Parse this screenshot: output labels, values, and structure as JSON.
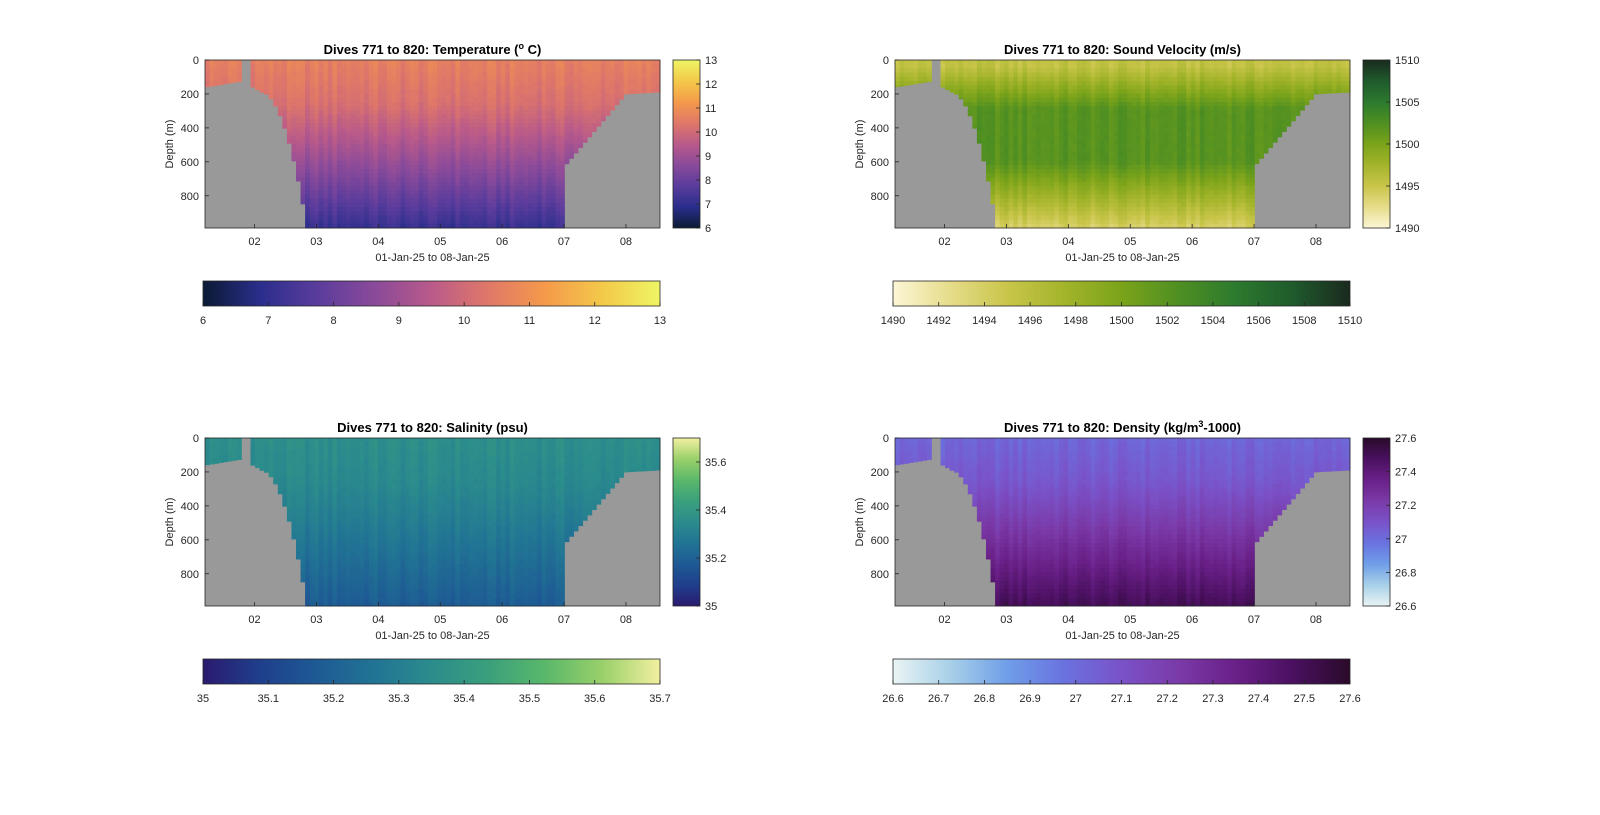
{
  "figure": {
    "window_title": ""
  },
  "chart_data": [
    {
      "type": "heatmap",
      "id": "temperature",
      "title_prefix": "Dives 771 to 820: Temperature (",
      "title_sup": "o",
      "title_suffix": " C)",
      "xlabel": "01-Jan-25 to 08-Jan-25",
      "ylabel": "Depth (m)",
      "x_range_days": [
        1.2,
        8.55
      ],
      "x_ticks": [
        "02",
        "03",
        "04",
        "05",
        "06",
        "07",
        "08"
      ],
      "x_tick_values": [
        2,
        3,
        4,
        5,
        6,
        7,
        8
      ],
      "y_range": [
        0,
        990
      ],
      "y_ticks": [
        "0",
        "200",
        "400",
        "600",
        "800"
      ],
      "y_tick_values": [
        0,
        200,
        400,
        600,
        800
      ],
      "y_reversed": true,
      "clim": [
        6,
        13
      ],
      "cbar_right_ticks": [
        "6",
        "7",
        "8",
        "9",
        "10",
        "11",
        "12",
        "13"
      ],
      "cbar_right_values": [
        6,
        7,
        8,
        9,
        10,
        11,
        12,
        13
      ],
      "cbar_bottom_ticks": [
        "6",
        "7",
        "8",
        "9",
        "10",
        "11",
        "12",
        "13"
      ],
      "cbar_bottom_values": [
        6,
        7,
        8,
        9,
        10,
        11,
        12,
        13
      ],
      "colormap": [
        "#0b1a33",
        "#2a2e8c",
        "#5a3c9c",
        "#8a4a9a",
        "#b95a8a",
        "#e07868",
        "#f59a4a",
        "#f3c94a",
        "#eef565"
      ],
      "surface_value": 10.6,
      "deep_value": 7.1,
      "mask_color": "#999999"
    },
    {
      "type": "heatmap",
      "id": "sound_velocity",
      "title_prefix": "Dives 771 to 820: Sound Velocity (m/s)",
      "title_sup": "",
      "title_suffix": "",
      "xlabel": "01-Jan-25 to 08-Jan-25",
      "ylabel": "Depth (m)",
      "x_range_days": [
        1.2,
        8.55
      ],
      "x_ticks": [
        "02",
        "03",
        "04",
        "05",
        "06",
        "07",
        "08"
      ],
      "x_tick_values": [
        2,
        3,
        4,
        5,
        6,
        7,
        8
      ],
      "y_range": [
        0,
        990
      ],
      "y_ticks": [
        "0",
        "200",
        "400",
        "600",
        "800"
      ],
      "y_tick_values": [
        0,
        200,
        400,
        600,
        800
      ],
      "y_reversed": true,
      "clim": [
        1490,
        1510
      ],
      "cbar_right_ticks": [
        "1490",
        "1495",
        "1500",
        "1505",
        "1510"
      ],
      "cbar_right_values": [
        1490,
        1495,
        1500,
        1505,
        1510
      ],
      "cbar_bottom_ticks": [
        "1490",
        "1492",
        "1494",
        "1496",
        "1498",
        "1500",
        "1502",
        "1504",
        "1506",
        "1508",
        "1510"
      ],
      "cbar_bottom_values": [
        1490,
        1492,
        1494,
        1496,
        1498,
        1500,
        1502,
        1504,
        1506,
        1508,
        1510
      ],
      "colormap": [
        "#fcf6d6",
        "#e6dc8a",
        "#c9c54a",
        "#a3b42a",
        "#7aa31a",
        "#4f8f22",
        "#2c7a2e",
        "#1f5a2c",
        "#1a2a1e"
      ],
      "surface_value": 1495.5,
      "mid_value": 1502,
      "deep_value": 1494,
      "mask_color": "#999999"
    },
    {
      "type": "heatmap",
      "id": "salinity",
      "title_prefix": "Dives 771 to 820: Salinity (psu)",
      "title_sup": "",
      "title_suffix": "",
      "xlabel": "01-Jan-25 to 08-Jan-25",
      "ylabel": "Depth (m)",
      "x_range_days": [
        1.2,
        8.55
      ],
      "x_ticks": [
        "02",
        "03",
        "04",
        "05",
        "06",
        "07",
        "08"
      ],
      "x_tick_values": [
        2,
        3,
        4,
        5,
        6,
        7,
        8
      ],
      "y_range": [
        0,
        990
      ],
      "y_ticks": [
        "0",
        "200",
        "400",
        "600",
        "800"
      ],
      "y_tick_values": [
        0,
        200,
        400,
        600,
        800
      ],
      "y_reversed": true,
      "clim": [
        35,
        35.7
      ],
      "cbar_right_ticks": [
        "35",
        "35.2",
        "35.4",
        "35.6"
      ],
      "cbar_right_values": [
        35,
        35.2,
        35.4,
        35.6
      ],
      "cbar_bottom_ticks": [
        "35",
        "35.1",
        "35.2",
        "35.3",
        "35.4",
        "35.5",
        "35.6",
        "35.7"
      ],
      "cbar_bottom_values": [
        35,
        35.1,
        35.2,
        35.3,
        35.4,
        35.5,
        35.6,
        35.7
      ],
      "colormap": [
        "#2a1a6e",
        "#1f3f8c",
        "#1e5a94",
        "#217494",
        "#2b8c8c",
        "#3aa07c",
        "#5ab86a",
        "#9ad06a",
        "#f2f0a0"
      ],
      "surface_value": 35.36,
      "deep_value": 35.18,
      "mask_color": "#999999"
    },
    {
      "type": "heatmap",
      "id": "density",
      "title_prefix": "Dives 771 to 820: Density (kg/m",
      "title_sup": "3",
      "title_suffix": "-1000)",
      "xlabel": "01-Jan-25 to 08-Jan-25",
      "ylabel": "Depth (m)",
      "x_range_days": [
        1.2,
        8.55
      ],
      "x_ticks": [
        "02",
        "03",
        "04",
        "05",
        "06",
        "07",
        "08"
      ],
      "x_tick_values": [
        2,
        3,
        4,
        5,
        6,
        7,
        8
      ],
      "y_range": [
        0,
        990
      ],
      "y_ticks": [
        "0",
        "200",
        "400",
        "600",
        "800"
      ],
      "y_tick_values": [
        0,
        200,
        400,
        600,
        800
      ],
      "y_reversed": true,
      "clim": [
        26.6,
        27.6
      ],
      "cbar_right_ticks": [
        "26.6",
        "26.8",
        "27",
        "27.2",
        "27.4",
        "27.6"
      ],
      "cbar_right_values": [
        26.6,
        26.8,
        27,
        27.2,
        27.4,
        27.6
      ],
      "cbar_bottom_ticks": [
        "26.6",
        "26.7",
        "26.8",
        "26.9",
        "27",
        "27.1",
        "27.2",
        "27.3",
        "27.4",
        "27.5",
        "27.6"
      ],
      "cbar_bottom_values": [
        26.6,
        26.7,
        26.8,
        26.9,
        27,
        27.1,
        27.2,
        27.3,
        27.4,
        27.5,
        27.6
      ],
      "colormap": [
        "#eaf4f4",
        "#a8d0e8",
        "#6f9ee8",
        "#6a72e0",
        "#7a52c8",
        "#7a3aa8",
        "#6a2088",
        "#4a1060",
        "#2a0a2a"
      ],
      "surface_value": 27.02,
      "deep_value": 27.5,
      "mask_color": "#999999"
    }
  ]
}
